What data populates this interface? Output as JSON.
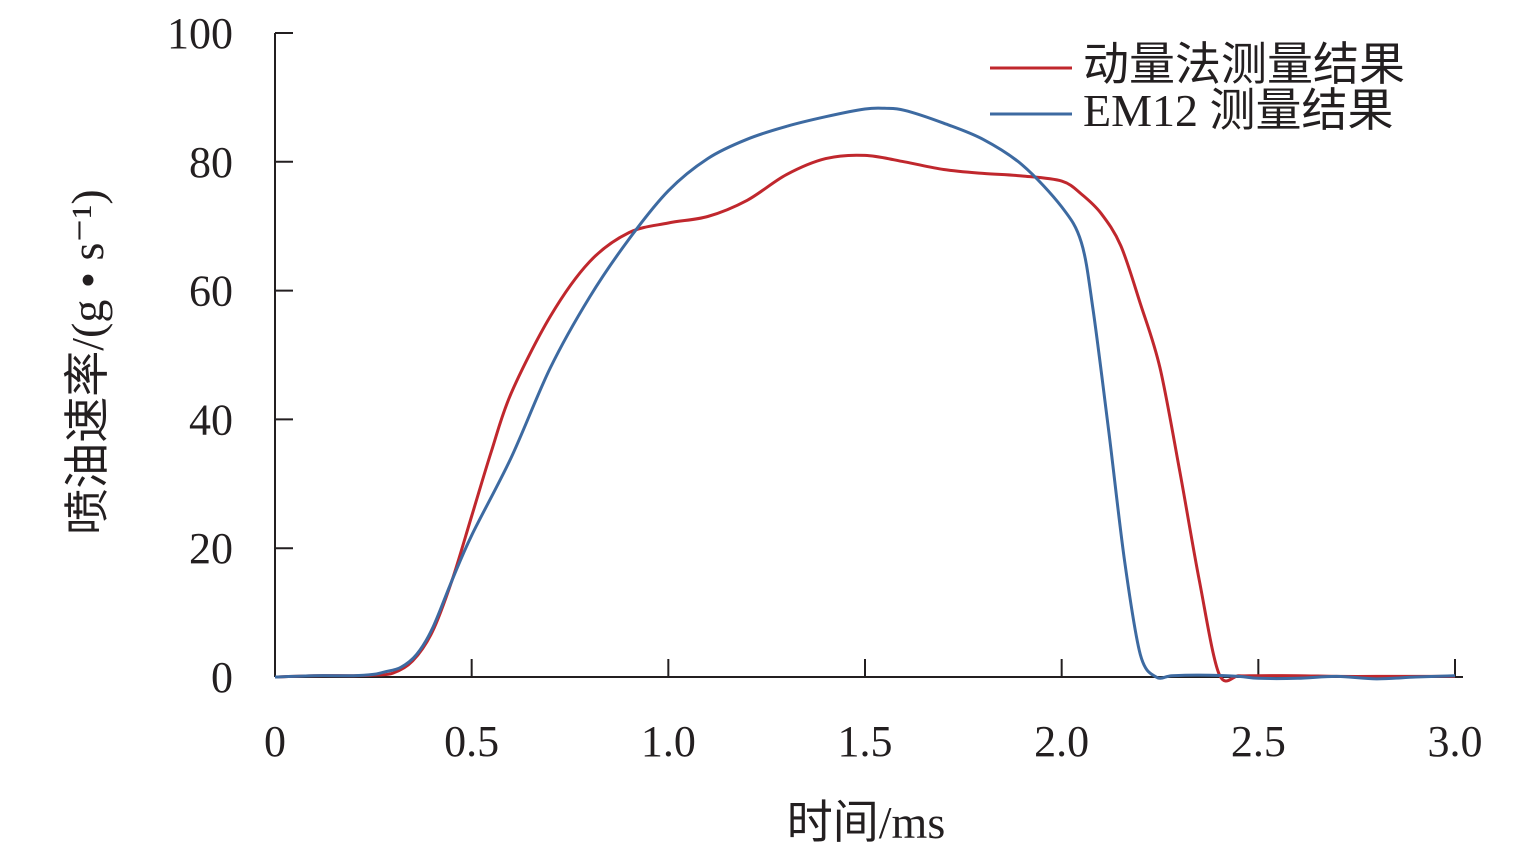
{
  "chart_data": {
    "type": "line",
    "xlabel": "时间/ms",
    "ylabel": "喷油速率/(g • s⁻¹)",
    "xlim": [
      0,
      3.0
    ],
    "ylim": [
      0,
      100
    ],
    "x_ticks": [
      "0",
      "0.5",
      "1.0",
      "1.5",
      "2.0",
      "2.5",
      "3.0"
    ],
    "y_ticks": [
      "0",
      "20",
      "40",
      "60",
      "80",
      "100"
    ],
    "grid": false,
    "legend_position": "top-right",
    "series": [
      {
        "name": "动量法测量结果",
        "color": "#c0272d",
        "x": [
          0,
          0.1,
          0.2,
          0.25,
          0.3,
          0.35,
          0.4,
          0.45,
          0.5,
          0.55,
          0.6,
          0.7,
          0.8,
          0.9,
          1.0,
          1.1,
          1.2,
          1.3,
          1.4,
          1.5,
          1.6,
          1.7,
          1.8,
          1.9,
          2.0,
          2.05,
          2.1,
          2.15,
          2.2,
          2.25,
          2.3,
          2.35,
          2.4,
          2.45,
          2.5,
          2.6,
          2.7,
          2.8,
          2.9,
          3.0
        ],
        "y": [
          0,
          0.2,
          0.2,
          0.3,
          0.6,
          2.5,
          7,
          15,
          25,
          35,
          44,
          56,
          64.5,
          69,
          70.5,
          71.5,
          74,
          78,
          80.5,
          81,
          80,
          78.8,
          78.2,
          77.8,
          77,
          75,
          72,
          67,
          58,
          48,
          32,
          15,
          0.5,
          0.2,
          0.2,
          0.2,
          0.1,
          0.1,
          0.1,
          0.1
        ]
      },
      {
        "name": "EM12 测量结果",
        "color": "#3d6aa1",
        "x": [
          0,
          0.1,
          0.2,
          0.25,
          0.28,
          0.32,
          0.36,
          0.4,
          0.45,
          0.5,
          0.6,
          0.7,
          0.8,
          0.9,
          1.0,
          1.1,
          1.2,
          1.3,
          1.4,
          1.5,
          1.55,
          1.6,
          1.7,
          1.8,
          1.9,
          2.0,
          2.05,
          2.08,
          2.12,
          2.16,
          2.2,
          2.24,
          2.28,
          2.35,
          2.45,
          2.5,
          2.6,
          2.7,
          2.8,
          2.9,
          3.0
        ],
        "y": [
          0,
          0.2,
          0.2,
          0.4,
          0.8,
          1.5,
          3.5,
          7.5,
          15,
          22,
          34,
          48,
          59,
          68,
          75.5,
          80.5,
          83.5,
          85.5,
          87,
          88.2,
          88.3,
          88,
          86,
          83.5,
          79.5,
          73,
          67.5,
          57,
          38,
          18,
          3.5,
          0,
          0.2,
          0.3,
          0.1,
          -0.2,
          -0.2,
          0.1,
          -0.3,
          0,
          0.2
        ]
      }
    ]
  }
}
